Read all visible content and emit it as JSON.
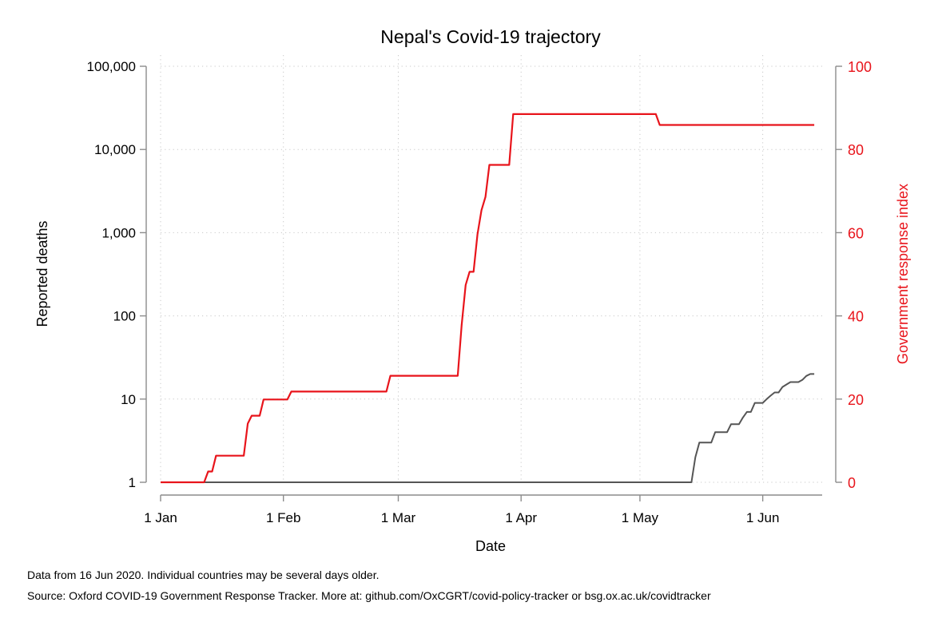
{
  "notes": {
    "data_date": "Data from 16 Jun 2020. Individual countries may be several days older.",
    "source": "Source: Oxford COVID-19 Government Response Tracker. More at: github.com/OxCGRT/covid-policy-tracker or bsg.ox.ac.uk/covidtracker"
  },
  "chart_data": {
    "type": "line",
    "title": "Nepal's Covid-19 trajectory",
    "xlabel": "Date",
    "ylabel": "Reported deaths",
    "y2label": "Government response index",
    "x_ticks": [
      {
        "label": "1 Jan",
        "date": "2020-01-01"
      },
      {
        "label": "1 Feb",
        "date": "2020-02-01"
      },
      {
        "label": "1 Mar",
        "date": "2020-03-01"
      },
      {
        "label": "1 Apr",
        "date": "2020-04-01"
      },
      {
        "label": "1 May",
        "date": "2020-05-01"
      },
      {
        "label": "1 Jun",
        "date": "2020-06-01"
      }
    ],
    "xlim": [
      "2020-01-01",
      "2020-06-16"
    ],
    "y_axis": {
      "scale": "log",
      "ylim": [
        1,
        100000
      ],
      "ticks": [
        {
          "value": 1,
          "label": "1"
        },
        {
          "value": 10,
          "label": "10"
        },
        {
          "value": 100,
          "label": "100"
        },
        {
          "value": 1000,
          "label": "1,000"
        },
        {
          "value": 10000,
          "label": "10,000"
        },
        {
          "value": 100000,
          "label": "100,000"
        }
      ]
    },
    "y2_axis": {
      "scale": "linear",
      "ylim": [
        0,
        100
      ],
      "ticks": [
        {
          "value": 0,
          "label": "0"
        },
        {
          "value": 20,
          "label": "20"
        },
        {
          "value": 40,
          "label": "40"
        },
        {
          "value": 60,
          "label": "60"
        },
        {
          "value": 80,
          "label": "80"
        },
        {
          "value": 100,
          "label": "100"
        }
      ]
    },
    "grid": true,
    "series": [
      {
        "name": "Reported deaths",
        "axis": "left",
        "color": "#555555",
        "points": [
          [
            "2020-01-01",
            1
          ],
          [
            "2020-05-14",
            1
          ],
          [
            "2020-05-15",
            2
          ],
          [
            "2020-05-16",
            3
          ],
          [
            "2020-05-19",
            3
          ],
          [
            "2020-05-20",
            4
          ],
          [
            "2020-05-23",
            4
          ],
          [
            "2020-05-24",
            5
          ],
          [
            "2020-05-26",
            5
          ],
          [
            "2020-05-27",
            6
          ],
          [
            "2020-05-28",
            7
          ],
          [
            "2020-05-29",
            7
          ],
          [
            "2020-05-30",
            9
          ],
          [
            "2020-06-01",
            9
          ],
          [
            "2020-06-02",
            10
          ],
          [
            "2020-06-03",
            11
          ],
          [
            "2020-06-04",
            12
          ],
          [
            "2020-06-05",
            12
          ],
          [
            "2020-06-06",
            14
          ],
          [
            "2020-06-07",
            15
          ],
          [
            "2020-06-08",
            16
          ],
          [
            "2020-06-10",
            16
          ],
          [
            "2020-06-11",
            17
          ],
          [
            "2020-06-12",
            19
          ],
          [
            "2020-06-13",
            20
          ],
          [
            "2020-06-14",
            20
          ]
        ]
      },
      {
        "name": "Government response index",
        "axis": "right",
        "color": "#e8141b",
        "points": [
          [
            "2020-01-01",
            0
          ],
          [
            "2020-01-12",
            0
          ],
          [
            "2020-01-13",
            2.6
          ],
          [
            "2020-01-14",
            2.6
          ],
          [
            "2020-01-15",
            6.4
          ],
          [
            "2020-01-22",
            6.4
          ],
          [
            "2020-01-23",
            14.1
          ],
          [
            "2020-01-24",
            16.0
          ],
          [
            "2020-01-26",
            16.0
          ],
          [
            "2020-01-27",
            19.9
          ],
          [
            "2020-02-02",
            19.9
          ],
          [
            "2020-02-03",
            21.8
          ],
          [
            "2020-02-27",
            21.8
          ],
          [
            "2020-02-28",
            25.6
          ],
          [
            "2020-03-16",
            25.6
          ],
          [
            "2020-03-17",
            37.8
          ],
          [
            "2020-03-18",
            47.4
          ],
          [
            "2020-03-19",
            50.6
          ],
          [
            "2020-03-20",
            50.6
          ],
          [
            "2020-03-21",
            59.6
          ],
          [
            "2020-03-22",
            65.4
          ],
          [
            "2020-03-23",
            68.6
          ],
          [
            "2020-03-24",
            76.3
          ],
          [
            "2020-03-29",
            76.3
          ],
          [
            "2020-03-30",
            88.5
          ],
          [
            "2020-05-05",
            88.5
          ],
          [
            "2020-05-06",
            85.9
          ],
          [
            "2020-06-14",
            85.9
          ]
        ]
      }
    ]
  }
}
